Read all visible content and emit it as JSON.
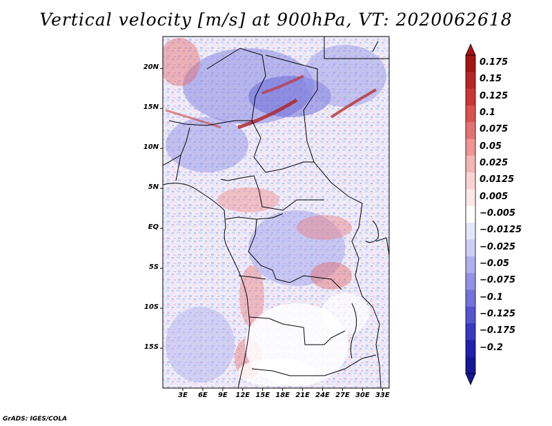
{
  "title": "Vertical velocity [m/s] at 900hPa, VT: 2020062618",
  "credit": "GrADS: IGES/COLA",
  "map": {
    "lon_range": [
      0,
      34
    ],
    "lat_range": [
      -20,
      24
    ],
    "lat_ticks": [
      {
        "value": 20,
        "label": "20N"
      },
      {
        "value": 15,
        "label": "15N"
      },
      {
        "value": 10,
        "label": "10N"
      },
      {
        "value": 5,
        "label": "5N"
      },
      {
        "value": 0,
        "label": "EQ"
      },
      {
        "value": -5,
        "label": "5S"
      },
      {
        "value": -10,
        "label": "10S"
      },
      {
        "value": -15,
        "label": "15S"
      }
    ],
    "lon_ticks": [
      {
        "value": 3,
        "label": "3E"
      },
      {
        "value": 6,
        "label": "6E"
      },
      {
        "value": 9,
        "label": "9E"
      },
      {
        "value": 12,
        "label": "12E"
      },
      {
        "value": 15,
        "label": "15E"
      },
      {
        "value": 18,
        "label": "18E"
      },
      {
        "value": 21,
        "label": "21E"
      },
      {
        "value": 24,
        "label": "24E"
      },
      {
        "value": 27,
        "label": "27E"
      },
      {
        "value": 30,
        "label": "30E"
      },
      {
        "value": 33,
        "label": "33E"
      }
    ]
  },
  "colorbar": {
    "levels": [
      {
        "label": "0.175",
        "color": "#a51414"
      },
      {
        "label": "0.15",
        "color": "#b92424"
      },
      {
        "label": "0.125",
        "color": "#cd3434"
      },
      {
        "label": "0.1",
        "color": "#dc5050"
      },
      {
        "label": "0.075",
        "color": "#e67070"
      },
      {
        "label": "0.05",
        "color": "#f09494"
      },
      {
        "label": "0.025",
        "color": "#f6b4b4"
      },
      {
        "label": "0.0125",
        "color": "#fad2d2"
      },
      {
        "label": "0.005",
        "color": "#fde8e8"
      },
      {
        "label": "−0.005",
        "color": "#ffffff"
      },
      {
        "label": "−0.0125",
        "color": "#e6e6fb"
      },
      {
        "label": "−0.025",
        "color": "#cdcdf6"
      },
      {
        "label": "−0.05",
        "color": "#afaff0"
      },
      {
        "label": "−0.075",
        "color": "#9292e8"
      },
      {
        "label": "−0.1",
        "color": "#7373de"
      },
      {
        "label": "−0.125",
        "color": "#5555d2"
      },
      {
        "label": "−0.175",
        "color": "#3838c2"
      },
      {
        "label": "−0.2",
        "color": "#2020b0"
      }
    ],
    "top_color": "#a51414",
    "bottom_color": "#16169a"
  }
}
